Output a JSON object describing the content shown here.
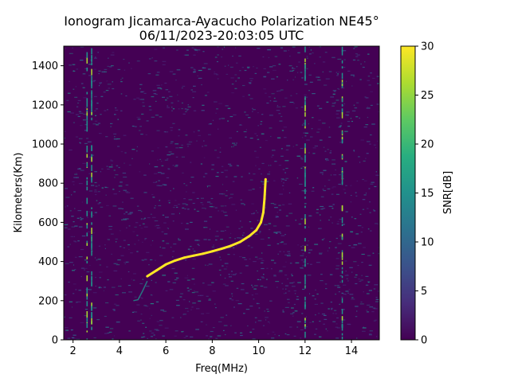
{
  "chart_data": {
    "type": "heatmap",
    "title_line1": "Ionogram Jicamarca-Ayacucho Polarization NE45°",
    "title_line2": "06/11/2023-20:03:05 UTC",
    "xlabel": "Freq(MHz)",
    "ylabel": "Kilometers(Km)",
    "xlim": [
      1.6,
      15.2
    ],
    "ylim": [
      0,
      1500
    ],
    "x_ticks": [
      2,
      4,
      6,
      8,
      10,
      12,
      14
    ],
    "y_ticks": [
      0,
      200,
      400,
      600,
      800,
      1000,
      1200,
      1400
    ],
    "colorbar": {
      "label": "SNR[dB]",
      "colormap": "viridis",
      "range": [
        0,
        30
      ],
      "ticks": [
        0,
        5,
        10,
        15,
        20,
        25,
        30
      ]
    },
    "background_snr_db": 1,
    "trace": {
      "description": "ionospheric F-layer echo trace",
      "freq_mhz": [
        5.2,
        5.6,
        6.0,
        6.4,
        6.8,
        7.2,
        7.6,
        8.0,
        8.4,
        8.8,
        9.2,
        9.6,
        9.9,
        10.1,
        10.2,
        10.25,
        10.3
      ],
      "height_km": [
        325,
        355,
        385,
        405,
        420,
        430,
        440,
        452,
        465,
        480,
        500,
        530,
        560,
        600,
        650,
        720,
        820
      ],
      "snr_db": 30
    },
    "faint_trace": {
      "freq_mhz": [
        4.6,
        4.8,
        5.0,
        5.2
      ],
      "height_km": [
        200,
        205,
        250,
        300
      ],
      "snr_db": 15
    },
    "vertical_interference_lines_mhz": [
      2.6,
      2.8,
      12.0,
      13.6
    ]
  }
}
